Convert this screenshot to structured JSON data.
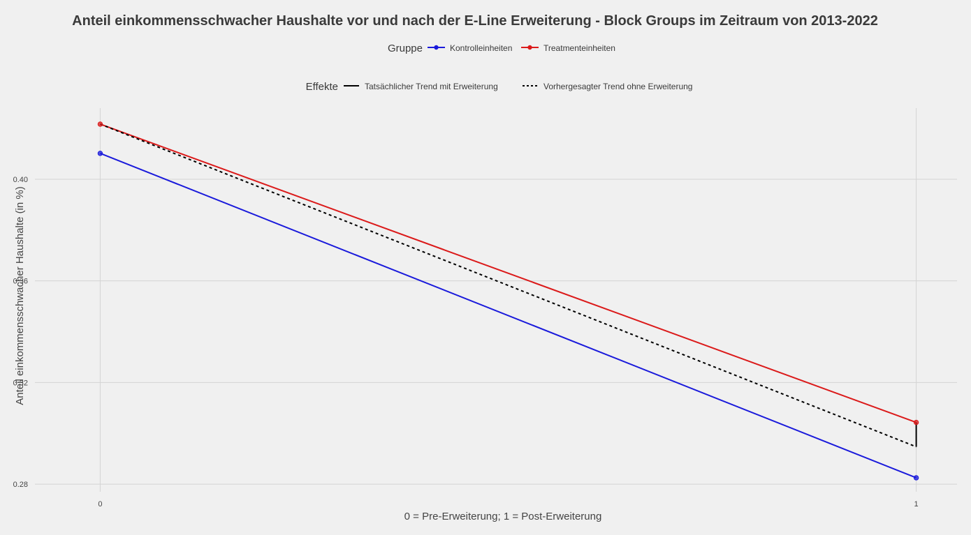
{
  "chart_data": {
    "type": "line",
    "title": "Anteil einkommensschwacher Haushalte vor und nach der E-Line Erweiterung - Block Groups im Zeitraum von 2013-2022",
    "xlabel": "0 = Pre-Erweiterung; 1 = Post-Erweiterung",
    "ylabel": "Anteil einkommensschwacher Haushalte (in %)",
    "x": [
      0,
      1
    ],
    "x_tick_labels": [
      "0",
      "1"
    ],
    "y_ticks": [
      0.28,
      0.32,
      0.36,
      0.4
    ],
    "y_tick_labels": [
      "0.28",
      "0.32",
      "0.36",
      "0.40"
    ],
    "ylim": [
      0.277,
      0.428
    ],
    "xlim": [
      -0.08,
      1.05
    ],
    "grid": true,
    "series": [
      {
        "name": "Kontrolleinheiten",
        "color": "#1a1adb",
        "values": [
          0.4102,
          0.2825
        ]
      },
      {
        "name": "Treatmenteinheiten",
        "color": "#db1a1a",
        "values": [
          0.4217,
          0.3043
        ]
      }
    ],
    "counterfactual": {
      "values": [
        0.4217,
        0.2947
      ],
      "color": "#000000"
    },
    "effect_segment": {
      "x": 1,
      "y_from": 0.2947,
      "y_to": 0.3043,
      "color": "#000000"
    },
    "legend_group": {
      "title": "Gruppe",
      "items": [
        {
          "label": "Kontrolleinheiten",
          "color": "#1a1adb"
        },
        {
          "label": "Treatmenteinheiten",
          "color": "#db1a1a"
        }
      ]
    },
    "legend_effect": {
      "title": "Effekte",
      "items": [
        {
          "label": "Tatsächlicher Trend mit Erweiterung",
          "style": "solid"
        },
        {
          "label": "Vorhergesagter Trend ohne Erweiterung",
          "style": "dashed"
        }
      ]
    },
    "legend_position": "top"
  }
}
